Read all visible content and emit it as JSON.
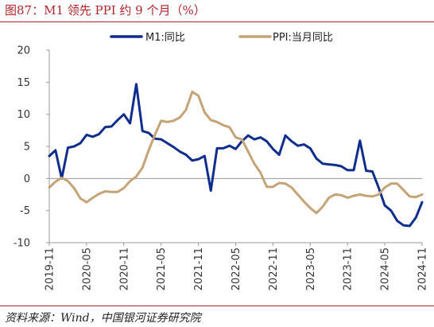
{
  "header": {
    "title": "图87：M1 领先 PPI 约 9 个月（%）"
  },
  "footer": {
    "source": "资料来源：Wind，中国银河证券研究院"
  },
  "colors": {
    "m1": "#0f2d8c",
    "ppi": "#c4a477",
    "accent": "#b0232a",
    "axis": "#999999"
  },
  "chart_data": {
    "type": "line",
    "title": "",
    "xlabel": "",
    "ylabel": "",
    "ylim": [
      -10,
      20
    ],
    "yticks": [
      -10,
      -5,
      0,
      5,
      10,
      15,
      20
    ],
    "xtick_labels": [
      "2019-11",
      "2020-05",
      "2020-11",
      "2021-05",
      "2021-11",
      "2022-05",
      "2022-11",
      "2023-05",
      "2023-11",
      "2024-05",
      "2024-11"
    ],
    "legend_position": "top",
    "grid": false,
    "x": [
      "2019-11",
      "2019-12",
      "2020-01",
      "2020-02",
      "2020-03",
      "2020-04",
      "2020-05",
      "2020-06",
      "2020-07",
      "2020-08",
      "2020-09",
      "2020-10",
      "2020-11",
      "2020-12",
      "2021-01",
      "2021-02",
      "2021-03",
      "2021-04",
      "2021-05",
      "2021-06",
      "2021-07",
      "2021-08",
      "2021-09",
      "2021-10",
      "2021-11",
      "2021-12",
      "2022-01",
      "2022-02",
      "2022-03",
      "2022-04",
      "2022-05",
      "2022-06",
      "2022-07",
      "2022-08",
      "2022-09",
      "2022-10",
      "2022-11",
      "2022-12",
      "2023-01",
      "2023-02",
      "2023-03",
      "2023-04",
      "2023-05",
      "2023-06",
      "2023-07",
      "2023-08",
      "2023-09",
      "2023-10",
      "2023-11",
      "2023-12",
      "2024-01",
      "2024-02",
      "2024-03",
      "2024-04",
      "2024-05",
      "2024-06",
      "2024-07",
      "2024-08",
      "2024-09",
      "2024-10",
      "2024-11"
    ],
    "series": [
      {
        "name": "M1:同比",
        "color": "#0f2d8c",
        "values": [
          3.5,
          4.4,
          0.0,
          4.8,
          5.0,
          5.5,
          6.8,
          6.5,
          6.9,
          8.0,
          8.1,
          9.1,
          10.0,
          8.6,
          14.7,
          7.4,
          7.1,
          6.2,
          6.1,
          5.5,
          4.9,
          4.2,
          3.7,
          2.8,
          3.0,
          3.5,
          -1.9,
          4.7,
          4.7,
          5.1,
          4.6,
          5.8,
          6.7,
          6.1,
          6.4,
          5.8,
          4.6,
          3.7,
          6.7,
          5.8,
          5.1,
          5.3,
          4.7,
          3.1,
          2.3,
          2.2,
          2.1,
          1.9,
          1.3,
          1.3,
          5.9,
          1.2,
          1.1,
          -1.4,
          -4.2,
          -5.0,
          -6.6,
          -7.3,
          -7.4,
          -6.1,
          -3.7
        ]
      },
      {
        "name": "PPI:当月同比",
        "color": "#c4a477",
        "values": [
          -1.4,
          -0.5,
          0.1,
          -0.4,
          -1.5,
          -3.1,
          -3.7,
          -3.0,
          -2.4,
          -2.0,
          -2.1,
          -2.1,
          -1.5,
          -0.4,
          0.3,
          1.7,
          4.4,
          6.8,
          9.0,
          8.8,
          9.0,
          9.5,
          10.7,
          13.5,
          12.9,
          10.3,
          9.1,
          8.8,
          8.3,
          8.0,
          6.4,
          6.1,
          4.2,
          2.3,
          0.9,
          -1.3,
          -1.3,
          -0.7,
          -0.8,
          -1.4,
          -2.5,
          -3.6,
          -4.6,
          -5.4,
          -4.4,
          -3.0,
          -2.5,
          -2.6,
          -3.0,
          -2.7,
          -2.5,
          -2.7,
          -2.8,
          -2.5,
          -1.4,
          -0.8,
          -0.8,
          -1.8,
          -2.8,
          -2.9,
          -2.5
        ]
      }
    ]
  }
}
